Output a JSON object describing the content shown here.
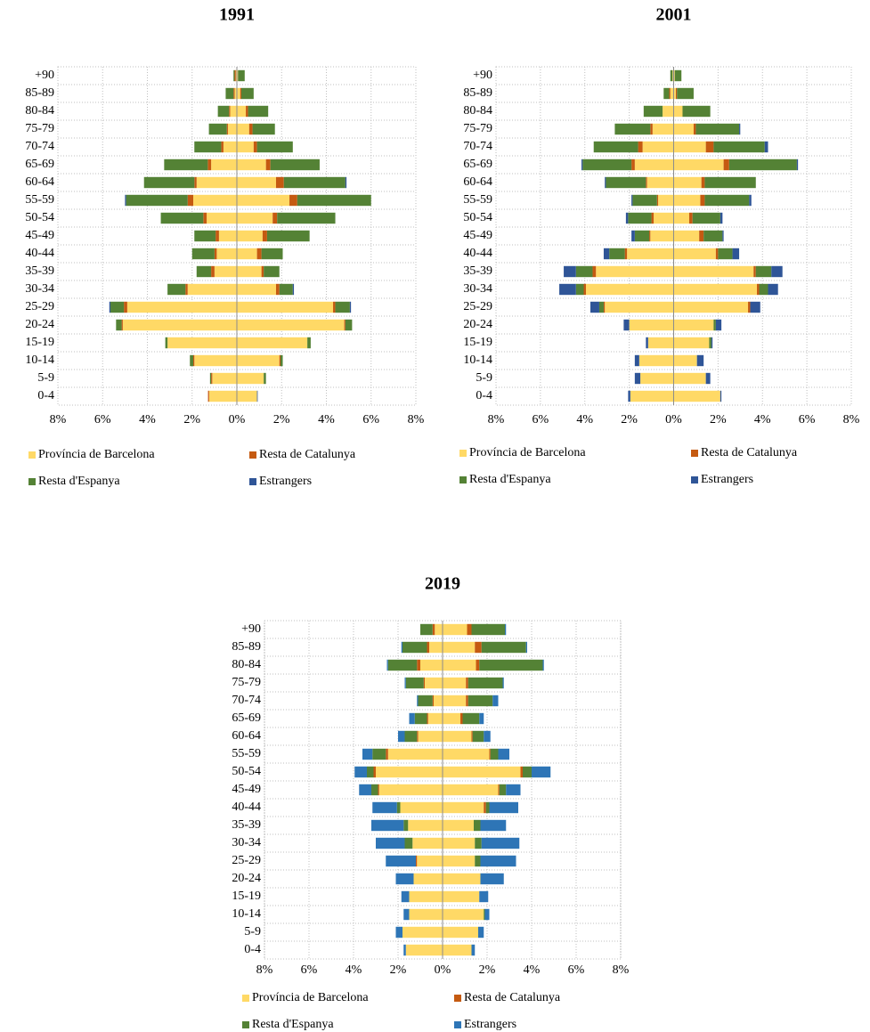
{
  "chart_data": [
    {
      "type": "pyramid",
      "title": "1991",
      "legend": "bottom",
      "grid": true,
      "categories": [
        "0-4",
        "5-9",
        "10-14",
        "15-19",
        "20-24",
        "25-29",
        "30-34",
        "35-39",
        "40-44",
        "45-49",
        "50-54",
        "55-59",
        "60-64",
        "65-69",
        "70-74",
        "75-79",
        "80-84",
        "85-89",
        "+90"
      ],
      "xlim": [
        -8,
        8
      ],
      "xticks": [
        {
          "value": -8,
          "label": "8%"
        },
        {
          "value": -6,
          "label": "6%"
        },
        {
          "value": -4,
          "label": "4%"
        },
        {
          "value": -2,
          "label": "2%"
        },
        {
          "value": 0,
          "label": "0%"
        },
        {
          "value": 2,
          "label": "2%"
        },
        {
          "value": 4,
          "label": "4%"
        },
        {
          "value": 6,
          "label": "6%"
        },
        {
          "value": 8,
          "label": "8%"
        }
      ],
      "series": [
        {
          "name": "Província de Barcelona",
          "color": "#FFD966",
          "left": [
            -1.24,
            -1.1,
            -1.9,
            -3.1,
            -5.1,
            -4.9,
            -2.2,
            -1.0,
            -0.9,
            -0.8,
            -1.35,
            -1.95,
            -1.8,
            -1.15,
            -0.6,
            -0.4,
            -0.3,
            -0.1,
            -0.05
          ],
          "right": [
            0.9,
            1.2,
            1.9,
            3.15,
            4.8,
            4.3,
            1.75,
            1.1,
            0.9,
            1.15,
            1.6,
            2.35,
            1.75,
            1.3,
            0.75,
            0.55,
            0.4,
            0.15,
            0.05
          ]
        },
        {
          "name": "Resta de Catalunya",
          "color": "#C55A11",
          "left": [
            -0.05,
            -0.05,
            -0.05,
            0,
            -0.05,
            -0.15,
            -0.1,
            -0.15,
            -0.1,
            -0.15,
            -0.15,
            -0.25,
            -0.1,
            -0.15,
            -0.1,
            -0.05,
            -0.05,
            -0.05,
            -0.05
          ],
          "right": [
            0,
            0,
            0.05,
            0,
            0.05,
            0.1,
            0.15,
            0.1,
            0.2,
            0.2,
            0.2,
            0.35,
            0.35,
            0.2,
            0.15,
            0.15,
            0.1,
            0.05,
            0
          ]
        },
        {
          "name": "Resta d'Espanya",
          "color": "#548235",
          "left": [
            0,
            -0.05,
            -0.15,
            -0.1,
            -0.25,
            -0.6,
            -0.8,
            -0.65,
            -1.0,
            -0.95,
            -1.9,
            -2.75,
            -2.25,
            -1.95,
            -1.2,
            -0.8,
            -0.5,
            -0.35,
            -0.05
          ],
          "right": [
            0,
            0.1,
            0.1,
            0.15,
            0.3,
            0.65,
            0.6,
            0.7,
            0.95,
            1.9,
            2.6,
            3.3,
            2.75,
            2.2,
            1.6,
            1.0,
            0.9,
            0.55,
            0.3
          ]
        },
        {
          "name": "Estrangers",
          "color": "#2F5597",
          "left": [
            0,
            0,
            0,
            0,
            0,
            -0.05,
            0,
            0,
            0,
            0,
            0,
            -0.05,
            0,
            0,
            0,
            0,
            0,
            0,
            0
          ],
          "right": [
            0.03,
            0,
            0,
            0,
            0,
            0.05,
            0.05,
            0,
            0,
            0,
            0,
            0,
            0.05,
            0,
            0,
            0,
            0,
            0,
            0
          ]
        }
      ]
    },
    {
      "type": "pyramid",
      "title": "2001",
      "legend": "bottom",
      "grid": true,
      "categories": [
        "0-4",
        "5-9",
        "10-14",
        "15-19",
        "20-24",
        "25-29",
        "30-34",
        "35-39",
        "40-44",
        "45-49",
        "50-54",
        "55-59",
        "60-64",
        "65-69",
        "70-74",
        "75-79",
        "80-84",
        "85-89",
        "+90"
      ],
      "xlim": [
        -8,
        8
      ],
      "xticks": [
        {
          "value": -8,
          "label": "8%"
        },
        {
          "value": -6,
          "label": "6%"
        },
        {
          "value": -4,
          "label": "4%"
        },
        {
          "value": -2,
          "label": "2%"
        },
        {
          "value": 0,
          "label": "0%"
        },
        {
          "value": 2,
          "label": "2%"
        },
        {
          "value": 4,
          "label": "4%"
        },
        {
          "value": 6,
          "label": "6%"
        },
        {
          "value": 8,
          "label": "8%"
        }
      ],
      "series": [
        {
          "name": "Província de Barcelona",
          "color": "#FFD966",
          "left": [
            -1.95,
            -1.5,
            -1.55,
            -1.15,
            -2.0,
            -3.1,
            -3.95,
            -3.5,
            -2.1,
            -1.05,
            -0.9,
            -0.7,
            -1.2,
            -1.75,
            -1.4,
            -0.95,
            -0.5,
            -0.15,
            -0.05
          ],
          "right": [
            2.1,
            1.45,
            1.05,
            1.6,
            1.8,
            3.35,
            3.75,
            3.6,
            1.9,
            1.15,
            0.7,
            1.2,
            1.25,
            2.25,
            1.45,
            0.9,
            0.4,
            0.1,
            0.05
          ]
        },
        {
          "name": "Resta de Catalunya",
          "color": "#C55A11",
          "left": [
            0,
            0,
            0,
            0,
            0,
            -0.05,
            -0.1,
            -0.15,
            -0.1,
            -0.05,
            -0.1,
            -0.05,
            -0.05,
            -0.15,
            -0.2,
            -0.1,
            0,
            -0.05,
            0
          ],
          "right": [
            0,
            0,
            0,
            0,
            0,
            0.1,
            0.1,
            0.1,
            0.1,
            0.2,
            0.15,
            0.2,
            0.15,
            0.25,
            0.35,
            0.1,
            0,
            0.05,
            0
          ]
        },
        {
          "name": "Resta d'Espanya",
          "color": "#548235",
          "left": [
            0,
            0,
            0,
            0,
            0,
            -0.2,
            -0.35,
            -0.75,
            -0.7,
            -0.65,
            -1.05,
            -1.1,
            -1.8,
            -2.2,
            -2.0,
            -1.6,
            -0.85,
            -0.25,
            -0.1
          ],
          "right": [
            0,
            0,
            0,
            0.1,
            0.1,
            0,
            0.4,
            0.7,
            0.65,
            0.85,
            1.25,
            2.0,
            2.3,
            3.05,
            2.3,
            1.95,
            1.25,
            0.75,
            0.3
          ]
        },
        {
          "name": "Estrangers",
          "color": "#2F5597",
          "left": [
            -0.1,
            -0.25,
            -0.2,
            -0.1,
            -0.25,
            -0.4,
            -0.75,
            -0.55,
            -0.25,
            -0.15,
            -0.1,
            -0.05,
            -0.05,
            -0.05,
            0,
            0,
            0,
            0,
            0
          ],
          "right": [
            0.05,
            0.2,
            0.3,
            0.05,
            0.25,
            0.45,
            0.45,
            0.5,
            0.3,
            0.05,
            0.1,
            0.1,
            0,
            0.05,
            0.15,
            0.05,
            0,
            0,
            0
          ]
        }
      ]
    },
    {
      "type": "pyramid",
      "title": "2019",
      "legend": "bottom",
      "grid": true,
      "categories": [
        "0-4",
        "5-9",
        "10-14",
        "15-19",
        "20-24",
        "25-29",
        "30-34",
        "35-39",
        "40-44",
        "45-49",
        "50-54",
        "55-59",
        "60-64",
        "65-69",
        "70-74",
        "75-79",
        "80-84",
        "85-89",
        "+90"
      ],
      "xlim": [
        -8,
        8
      ],
      "xticks": [
        {
          "value": -8,
          "label": "8%"
        },
        {
          "value": -6,
          "label": "6%"
        },
        {
          "value": -4,
          "label": "4%"
        },
        {
          "value": -2,
          "label": "2%"
        },
        {
          "value": 0,
          "label": "0%"
        },
        {
          "value": 2,
          "label": "2%"
        },
        {
          "value": 4,
          "label": "4%"
        },
        {
          "value": 6,
          "label": "6%"
        },
        {
          "value": 8,
          "label": "8%"
        }
      ],
      "series": [
        {
          "name": "Província de Barcelona",
          "color": "#FFD966",
          "left": [
            -1.65,
            -1.8,
            -1.5,
            -1.5,
            -1.3,
            -1.15,
            -1.35,
            -1.55,
            -1.9,
            -2.85,
            -3.0,
            -2.45,
            -1.1,
            -0.65,
            -0.4,
            -0.8,
            -1.0,
            -0.6,
            -0.35
          ],
          "right": [
            1.3,
            1.6,
            1.85,
            1.65,
            1.7,
            1.45,
            1.45,
            1.4,
            1.85,
            2.5,
            3.5,
            2.1,
            1.3,
            0.8,
            1.05,
            1.05,
            1.5,
            1.45,
            1.1
          ]
        },
        {
          "name": "Resta de Catalunya",
          "color": "#C55A11",
          "left": [
            0,
            0,
            0,
            0,
            0,
            -0.05,
            0,
            0,
            0,
            -0.05,
            -0.1,
            -0.1,
            -0.05,
            -0.05,
            -0.05,
            -0.05,
            -0.15,
            -0.1,
            -0.1
          ],
          "right": [
            0,
            0,
            0,
            0,
            0,
            0,
            0,
            0,
            0.1,
            0.05,
            0.1,
            0.05,
            0.05,
            0.1,
            0.1,
            0.1,
            0.15,
            0.3,
            0.2
          ]
        },
        {
          "name": "Resta d'Espanya",
          "color": "#548235",
          "left": [
            0,
            0,
            0,
            0,
            0,
            0,
            -0.35,
            -0.2,
            -0.15,
            -0.3,
            -0.3,
            -0.6,
            -0.55,
            -0.55,
            -0.65,
            -0.8,
            -1.3,
            -1.1,
            -0.55
          ],
          "right": [
            0,
            0,
            0.05,
            0,
            0,
            0.25,
            0.3,
            0.3,
            0.15,
            0.3,
            0.4,
            0.35,
            0.5,
            0.75,
            1.1,
            1.55,
            2.85,
            2.0,
            1.5
          ]
        },
        {
          "name": "Estrangers",
          "color": "#2E75B6",
          "left": [
            -0.1,
            -0.3,
            -0.25,
            -0.35,
            -0.8,
            -1.35,
            -1.3,
            -1.45,
            -1.1,
            -0.55,
            -0.55,
            -0.45,
            -0.3,
            -0.25,
            -0.05,
            -0.05,
            -0.05,
            -0.05,
            0
          ],
          "right": [
            0.15,
            0.25,
            0.2,
            0.4,
            1.05,
            1.6,
            1.7,
            1.15,
            1.3,
            0.65,
            0.85,
            0.5,
            0.3,
            0.2,
            0.25,
            0.05,
            0.05,
            0.05,
            0.05
          ]
        }
      ]
    }
  ]
}
